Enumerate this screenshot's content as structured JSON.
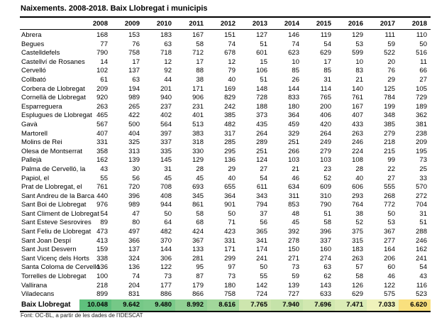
{
  "title": "Naixements. 2008-2018. Baix Llobregat i municipis",
  "source_note": "Font: OC-BL, a partir de les dades de l'IDESCAT",
  "table": {
    "years": [
      "2008",
      "2009",
      "2010",
      "2011",
      "2012",
      "2013",
      "2014",
      "2015",
      "2016",
      "2017",
      "2018"
    ],
    "rows": [
      {
        "label": "Abrera",
        "values": [
          168,
          153,
          183,
          167,
          151,
          127,
          146,
          119,
          129,
          111,
          110
        ]
      },
      {
        "label": "Begues",
        "values": [
          77,
          76,
          63,
          58,
          74,
          51,
          74,
          54,
          53,
          59,
          50
        ]
      },
      {
        "label": "Castelldefels",
        "values": [
          790,
          758,
          718,
          712,
          678,
          601,
          623,
          629,
          599,
          522,
          516
        ]
      },
      {
        "label": "Castellví de Rosanes",
        "values": [
          14,
          17,
          12,
          17,
          12,
          15,
          10,
          17,
          10,
          20,
          11
        ]
      },
      {
        "label": "Cervelló",
        "values": [
          102,
          137,
          92,
          88,
          79,
          106,
          85,
          85,
          83,
          76,
          66
        ]
      },
      {
        "label": "Collbató",
        "values": [
          61,
          63,
          44,
          38,
          40,
          51,
          26,
          31,
          21,
          29,
          27
        ]
      },
      {
        "label": "Corbera de Llobregat",
        "values": [
          209,
          194,
          201,
          171,
          169,
          148,
          144,
          114,
          140,
          125,
          105
        ]
      },
      {
        "label": "Cornellà de Llobregat",
        "values": [
          920,
          989,
          940,
          906,
          829,
          728,
          833,
          765,
          761,
          784,
          729
        ]
      },
      {
        "label": "Esparreguera",
        "values": [
          263,
          265,
          237,
          231,
          242,
          188,
          180,
          200,
          167,
          199,
          189
        ]
      },
      {
        "label": "Esplugues de Llobregat",
        "values": [
          465,
          422,
          402,
          401,
          385,
          373,
          364,
          406,
          407,
          348,
          362
        ]
      },
      {
        "label": "Gavà",
        "values": [
          567,
          500,
          564,
          513,
          482,
          435,
          459,
          420,
          433,
          385,
          381
        ]
      },
      {
        "label": "Martorell",
        "values": [
          407,
          404,
          397,
          383,
          317,
          264,
          329,
          264,
          263,
          279,
          238
        ]
      },
      {
        "label": "Molins de Rei",
        "values": [
          331,
          325,
          337,
          318,
          285,
          289,
          251,
          249,
          246,
          218,
          209
        ]
      },
      {
        "label": "Olesa de Montserrat",
        "values": [
          358,
          313,
          335,
          330,
          295,
          251,
          266,
          279,
          224,
          215,
          195
        ]
      },
      {
        "label": "Pallejà",
        "values": [
          162,
          139,
          145,
          129,
          136,
          124,
          103,
          103,
          108,
          99,
          73
        ]
      },
      {
        "label": "Palma de Cervelló, la",
        "values": [
          43,
          30,
          31,
          28,
          29,
          27,
          21,
          23,
          28,
          22,
          25
        ]
      },
      {
        "label": "Papiol, el",
        "values": [
          55,
          56,
          45,
          45,
          40,
          54,
          46,
          52,
          40,
          27,
          33
        ]
      },
      {
        "label": "Prat de Llobregat, el",
        "values": [
          761,
          720,
          708,
          693,
          655,
          611,
          634,
          609,
          606,
          555,
          570
        ]
      },
      {
        "label": "Sant Andreu de la Barca",
        "values": [
          440,
          396,
          408,
          345,
          364,
          343,
          311,
          310,
          293,
          268,
          272
        ]
      },
      {
        "label": "Sant Boi de Llobregat",
        "values": [
          976,
          989,
          944,
          861,
          901,
          794,
          853,
          790,
          764,
          772,
          704
        ]
      },
      {
        "label": "Sant Climent de Llobregat",
        "values": [
          54,
          47,
          50,
          58,
          50,
          37,
          48,
          51,
          38,
          50,
          31
        ]
      },
      {
        "label": "Sant Esteve Sesrovires",
        "values": [
          89,
          80,
          64,
          68,
          71,
          56,
          45,
          58,
          52,
          53,
          51
        ]
      },
      {
        "label": "Sant Feliu de Llobregat",
        "values": [
          473,
          497,
          482,
          424,
          423,
          365,
          392,
          396,
          375,
          367,
          288
        ]
      },
      {
        "label": "Sant Joan Despí",
        "values": [
          413,
          366,
          370,
          367,
          331,
          341,
          278,
          337,
          315,
          277,
          246
        ]
      },
      {
        "label": "Sant Just Desvern",
        "values": [
          159,
          137,
          144,
          133,
          171,
          174,
          150,
          160,
          183,
          164,
          162
        ]
      },
      {
        "label": "Sant Vicenç dels Horts",
        "values": [
          338,
          324,
          306,
          281,
          299,
          241,
          271,
          274,
          263,
          206,
          241
        ]
      },
      {
        "label": "Santa Coloma de Cervelló",
        "values": [
          136,
          136,
          122,
          95,
          97,
          50,
          73,
          63,
          57,
          60,
          54
        ]
      },
      {
        "label": "Torrelles de Llobregat",
        "values": [
          100,
          74,
          73,
          87,
          73,
          55,
          59,
          62,
          58,
          46,
          43
        ]
      },
      {
        "label": "Vallirana",
        "values": [
          218,
          204,
          177,
          179,
          180,
          142,
          139,
          143,
          126,
          122,
          116
        ]
      },
      {
        "label": "Viladecans",
        "values": [
          899,
          831,
          886,
          866,
          758,
          724,
          727,
          633,
          629,
          575,
          523
        ]
      }
    ],
    "total_row": {
      "label": "Baix Llobregat",
      "values": [
        "10.048",
        "9.642",
        "9.480",
        "8.992",
        "8.616",
        "7.765",
        "7.940",
        "7.696",
        "7.471",
        "7.033",
        "6.620"
      ],
      "cell_colors": [
        "#5fc07d",
        "#75c887",
        "#7bca8a",
        "#91d194",
        "#a2d79b",
        "#cde6ae",
        "#c5e3a9",
        "#d1e8b0",
        "#dbecb6",
        "#eff2bb",
        "#f9e07e"
      ]
    }
  }
}
